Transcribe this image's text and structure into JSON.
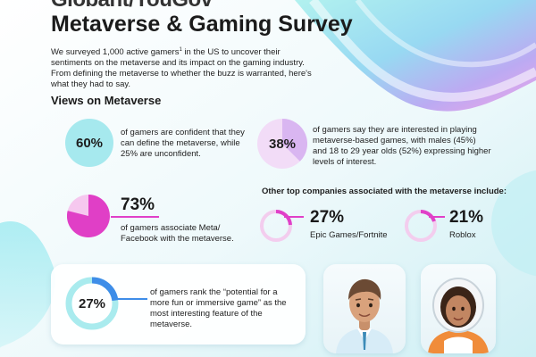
{
  "header": {
    "brand": "Globant/YouGov",
    "title": "Metaverse & Gaming Survey",
    "intro_before_sup": "We surveyed 1,000 active gamers",
    "intro_sup": "1",
    "intro_after_sup": " in the US to uncover their sentiments on the metaverse and its impact on the gaming industry. From defining the metaverse to whether the buzz is warranted, here's what they had to say."
  },
  "section_title": "Views on Metaverse",
  "stats": {
    "define": {
      "value": "60%",
      "text": "of gamers are confident that they can define the metaverse, while 25% are unconfident."
    },
    "interested": {
      "value": "38%",
      "text": "of gamers say they are interested in playing metaverse-based games, with males (45%) and 18 to 29 year olds (52%) expressing higher levels of interest."
    },
    "meta": {
      "value": "73%",
      "text": "of gamers associate Meta/ Facebook with the metaverse."
    },
    "fun": {
      "value": "27%",
      "text": "of gamers rank the “potential for a more fun or immersive game” as the most interesting feature of the metaverse."
    }
  },
  "companies": {
    "heading": "Other top companies associated with the metaverse include:",
    "items": [
      {
        "value": "27%",
        "label": "Epic Games/Fortnite"
      },
      {
        "value": "21%",
        "label": "Roblox"
      }
    ]
  },
  "colors": {
    "accent_magenta": "#e040c8",
    "accent_blue": "#3e8de8",
    "teal_light": "#a9ebee",
    "lavender": "#d8b4f0",
    "pink_light": "#f3c8ef"
  },
  "icons": [
    "male-avatar-icon",
    "female-astronaut-avatar-icon"
  ]
}
